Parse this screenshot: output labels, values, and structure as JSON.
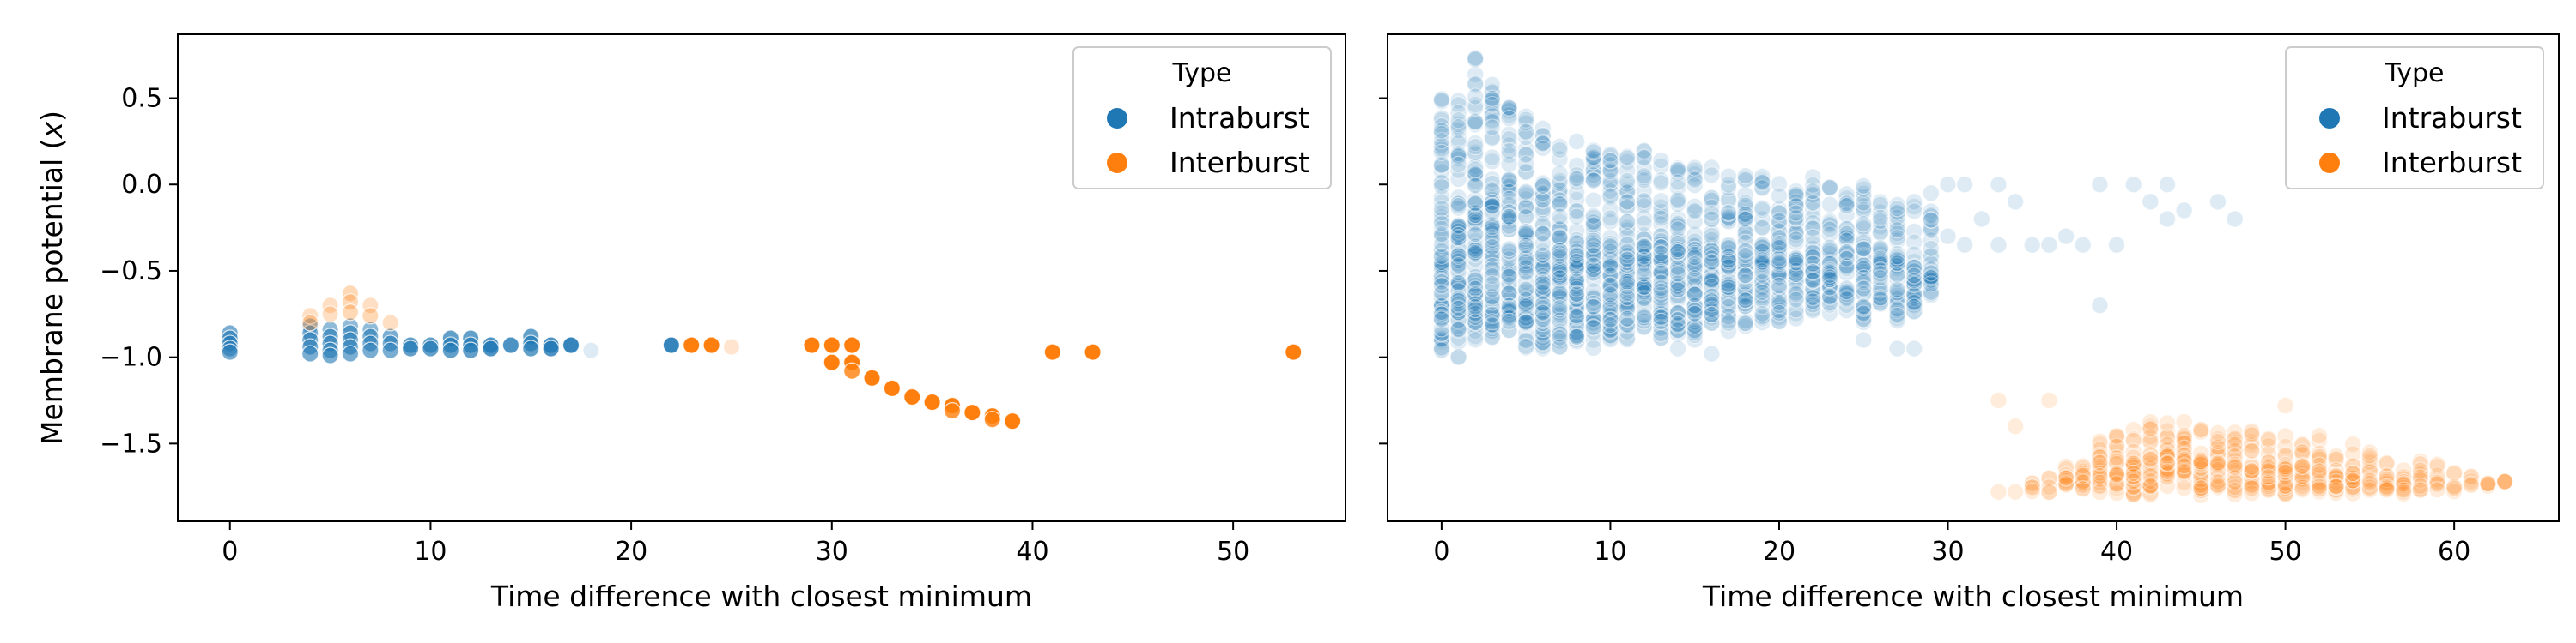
{
  "colors": {
    "Intraburst": "#1f77b4",
    "Interburst": "#ff7f0e",
    "axis": "#000000",
    "legend_border": "#cccccc"
  },
  "chart_data": [
    {
      "type": "scatter",
      "panel": "left",
      "xlabel": "Time difference with closest minimum",
      "ylabel": "Membrane potential (x)",
      "xlim": [
        -2.6,
        55.6
      ],
      "ylim": [
        -1.95,
        0.87
      ],
      "xticks": [
        0,
        10,
        20,
        30,
        40,
        50
      ],
      "yticks": [
        0.5,
        0.0,
        -0.5,
        -1.0,
        -1.5
      ],
      "ytick_labels": [
        "0.5",
        "0.0",
        "−0.5",
        "−1.0",
        "−1.5"
      ],
      "grid": false,
      "legend": {
        "title": "Type",
        "placement": "upper right",
        "entries": [
          "Intraburst",
          "Interburst"
        ]
      },
      "series": [
        {
          "name": "Intraburst",
          "points": [
            [
              0,
              -0.86,
              0.6
            ],
            [
              0,
              -0.89,
              0.6
            ],
            [
              0,
              -0.92,
              0.6
            ],
            [
              0,
              -0.95,
              0.6
            ],
            [
              0,
              -0.97,
              0.6
            ],
            [
              4,
              -0.82,
              0.5
            ],
            [
              4,
              -0.86,
              0.6
            ],
            [
              4,
              -0.9,
              0.6
            ],
            [
              4,
              -0.94,
              0.6
            ],
            [
              4,
              -0.98,
              0.6
            ],
            [
              5,
              -0.84,
              0.5
            ],
            [
              5,
              -0.88,
              0.6
            ],
            [
              5,
              -0.92,
              0.6
            ],
            [
              5,
              -0.96,
              0.6
            ],
            [
              5,
              -0.99,
              0.6
            ],
            [
              6,
              -0.82,
              0.5
            ],
            [
              6,
              -0.86,
              0.6
            ],
            [
              6,
              -0.9,
              0.6
            ],
            [
              6,
              -0.94,
              0.6
            ],
            [
              6,
              -0.98,
              0.6
            ],
            [
              7,
              -0.84,
              0.5
            ],
            [
              7,
              -0.88,
              0.6
            ],
            [
              7,
              -0.92,
              0.6
            ],
            [
              7,
              -0.96,
              0.6
            ],
            [
              8,
              -0.88,
              0.6
            ],
            [
              8,
              -0.92,
              0.6
            ],
            [
              8,
              -0.96,
              0.6
            ],
            [
              9,
              -0.93,
              0.7
            ],
            [
              9,
              -0.95,
              0.7
            ],
            [
              10,
              -0.93,
              0.7
            ],
            [
              10,
              -0.95,
              0.7
            ],
            [
              11,
              -0.89,
              0.7
            ],
            [
              11,
              -0.93,
              0.7
            ],
            [
              11,
              -0.96,
              0.7
            ],
            [
              12,
              -0.89,
              0.7
            ],
            [
              12,
              -0.93,
              0.7
            ],
            [
              12,
              -0.96,
              0.7
            ],
            [
              13,
              -0.93,
              0.8
            ],
            [
              13,
              -0.95,
              0.8
            ],
            [
              14,
              -0.93,
              0.8
            ],
            [
              15,
              -0.88,
              0.7
            ],
            [
              15,
              -0.92,
              0.7
            ],
            [
              15,
              -0.95,
              0.7
            ],
            [
              16,
              -0.93,
              0.8
            ],
            [
              16,
              -0.95,
              0.8
            ],
            [
              17,
              -0.93,
              0.9
            ],
            [
              18,
              -0.96,
              0.15
            ],
            [
              22,
              -0.93,
              0.9
            ]
          ]
        },
        {
          "name": "Interburst",
          "points": [
            [
              4,
              -0.76,
              0.25
            ],
            [
              4,
              -0.8,
              0.3
            ],
            [
              5,
              -0.7,
              0.25
            ],
            [
              5,
              -0.75,
              0.25
            ],
            [
              6,
              -0.63,
              0.3
            ],
            [
              6,
              -0.68,
              0.3
            ],
            [
              6,
              -0.74,
              0.3
            ],
            [
              7,
              -0.7,
              0.25
            ],
            [
              7,
              -0.76,
              0.3
            ],
            [
              8,
              -0.8,
              0.25
            ],
            [
              23,
              -0.93,
              1.0
            ],
            [
              24,
              -0.93,
              1.0
            ],
            [
              25,
              -0.94,
              0.2
            ],
            [
              29,
              -0.93,
              1.0
            ],
            [
              30,
              -0.93,
              1.0
            ],
            [
              30,
              -1.03,
              1.0
            ],
            [
              31,
              -0.93,
              1.0
            ],
            [
              31,
              -1.03,
              1.0
            ],
            [
              31,
              -1.08,
              0.8
            ],
            [
              32,
              -1.12,
              1.0
            ],
            [
              33,
              -1.18,
              1.0
            ],
            [
              34,
              -1.23,
              1.0
            ],
            [
              35,
              -1.26,
              1.0
            ],
            [
              36,
              -1.28,
              1.0
            ],
            [
              36,
              -1.31,
              0.8
            ],
            [
              37,
              -1.32,
              1.0
            ],
            [
              38,
              -1.34,
              1.0
            ],
            [
              38,
              -1.36,
              0.8
            ],
            [
              39,
              -1.37,
              1.0
            ],
            [
              41,
              -0.97,
              1.0
            ],
            [
              43,
              -0.97,
              1.0
            ],
            [
              53,
              -0.97,
              1.0
            ]
          ]
        }
      ]
    },
    {
      "type": "scatter",
      "panel": "right",
      "xlabel": "Time difference with closest minimum",
      "ylabel": "",
      "xlim": [
        -3.2,
        66.2
      ],
      "ylim": [
        -1.95,
        0.87
      ],
      "xticks": [
        0,
        10,
        20,
        30,
        40,
        50,
        60
      ],
      "yticks": [
        0.5,
        0.0,
        -0.5,
        -1.0,
        -1.5
      ],
      "ytick_labels": [],
      "grid": false,
      "legend": {
        "title": "Type",
        "placement": "upper right",
        "entries": [
          "Intraburst",
          "Interburst"
        ]
      },
      "series": [
        {
          "name": "Intraburst",
          "point_alpha": 0.15,
          "columns": [
            [
              0,
              -1.0,
              0.5
            ],
            [
              1,
              -1.0,
              0.5
            ],
            [
              2,
              -0.9,
              0.75
            ],
            [
              3,
              -0.9,
              0.6
            ],
            [
              4,
              -0.9,
              0.45
            ],
            [
              5,
              -0.95,
              0.4
            ],
            [
              6,
              -0.95,
              0.35
            ],
            [
              7,
              -0.95,
              0.3
            ],
            [
              8,
              -0.95,
              0.3
            ],
            [
              9,
              -0.95,
              0.25
            ],
            [
              10,
              -0.95,
              0.25
            ],
            [
              11,
              -0.9,
              0.2
            ],
            [
              12,
              -0.9,
              0.2
            ],
            [
              13,
              -0.9,
              0.15
            ],
            [
              14,
              -0.9,
              0.1
            ],
            [
              15,
              -0.9,
              0.1
            ],
            [
              16,
              -0.85,
              0.1
            ],
            [
              17,
              -0.85,
              0.05
            ],
            [
              18,
              -0.85,
              0.05
            ],
            [
              19,
              -0.8,
              0.05
            ],
            [
              20,
              -0.8,
              0.05
            ],
            [
              21,
              -0.8,
              0.0
            ],
            [
              22,
              -0.75,
              0.05
            ],
            [
              23,
              -0.75,
              0.0
            ],
            [
              24,
              -0.75,
              -0.05
            ],
            [
              25,
              -0.8,
              0.0
            ],
            [
              26,
              -0.75,
              -0.1
            ],
            [
              27,
              -0.8,
              -0.05
            ],
            [
              28,
              -0.75,
              -0.1
            ],
            [
              29,
              -0.7,
              -0.1
            ]
          ],
          "sparse_points": [
            [
              29,
              -0.05
            ],
            [
              30,
              0.0
            ],
            [
              30,
              -0.3
            ],
            [
              31,
              0.0
            ],
            [
              31,
              -0.35
            ],
            [
              32,
              -0.2
            ],
            [
              33,
              0.0
            ],
            [
              33,
              -0.35
            ],
            [
              34,
              -0.1
            ],
            [
              35,
              -0.35
            ],
            [
              36,
              -0.35
            ],
            [
              37,
              -0.3
            ],
            [
              38,
              -0.35
            ],
            [
              39,
              0.0
            ],
            [
              39,
              -0.7
            ],
            [
              40,
              -0.35
            ],
            [
              41,
              0.0
            ],
            [
              42,
              -0.1
            ],
            [
              43,
              0.0
            ],
            [
              43,
              -0.2
            ],
            [
              44,
              -0.15
            ],
            [
              46,
              -0.1
            ],
            [
              47,
              -0.2
            ],
            [
              27,
              -0.95
            ],
            [
              28,
              -0.95
            ],
            [
              25,
              -0.9
            ],
            [
              16,
              -0.98
            ],
            [
              14,
              -0.95
            ]
          ]
        },
        {
          "name": "Interburst",
          "point_alpha": 0.15,
          "columns": [
            [
              35,
              -1.78,
              -1.72
            ],
            [
              36,
              -1.8,
              -1.7
            ],
            [
              37,
              -1.8,
              -1.6
            ],
            [
              38,
              -1.8,
              -1.55
            ],
            [
              39,
              -1.8,
              -1.45
            ],
            [
              40,
              -1.8,
              -1.4
            ],
            [
              41,
              -1.8,
              -1.35
            ],
            [
              42,
              -1.8,
              -1.35
            ],
            [
              43,
              -1.8,
              -1.35
            ],
            [
              44,
              -1.8,
              -1.35
            ],
            [
              45,
              -1.8,
              -1.35
            ],
            [
              46,
              -1.8,
              -1.4
            ],
            [
              47,
              -1.8,
              -1.4
            ],
            [
              48,
              -1.8,
              -1.4
            ],
            [
              49,
              -1.8,
              -1.45
            ],
            [
              50,
              -1.8,
              -1.4
            ],
            [
              51,
              -1.8,
              -1.45
            ],
            [
              52,
              -1.8,
              -1.45
            ],
            [
              53,
              -1.8,
              -1.5
            ],
            [
              54,
              -1.8,
              -1.5
            ],
            [
              55,
              -1.8,
              -1.55
            ],
            [
              56,
              -1.8,
              -1.55
            ],
            [
              57,
              -1.8,
              -1.6
            ],
            [
              58,
              -1.8,
              -1.6
            ],
            [
              59,
              -1.78,
              -1.62
            ],
            [
              60,
              -1.78,
              -1.65
            ],
            [
              61,
              -1.76,
              -1.68
            ],
            [
              62,
              -1.75,
              -1.7
            ],
            [
              63,
              -1.72,
              -1.72
            ]
          ],
          "sparse_points": [
            [
              33,
              -1.78
            ],
            [
              34,
              -1.78
            ],
            [
              33,
              -1.25
            ],
            [
              34,
              -1.4
            ],
            [
              36,
              -1.25
            ],
            [
              50,
              -1.28
            ]
          ]
        }
      ]
    }
  ]
}
